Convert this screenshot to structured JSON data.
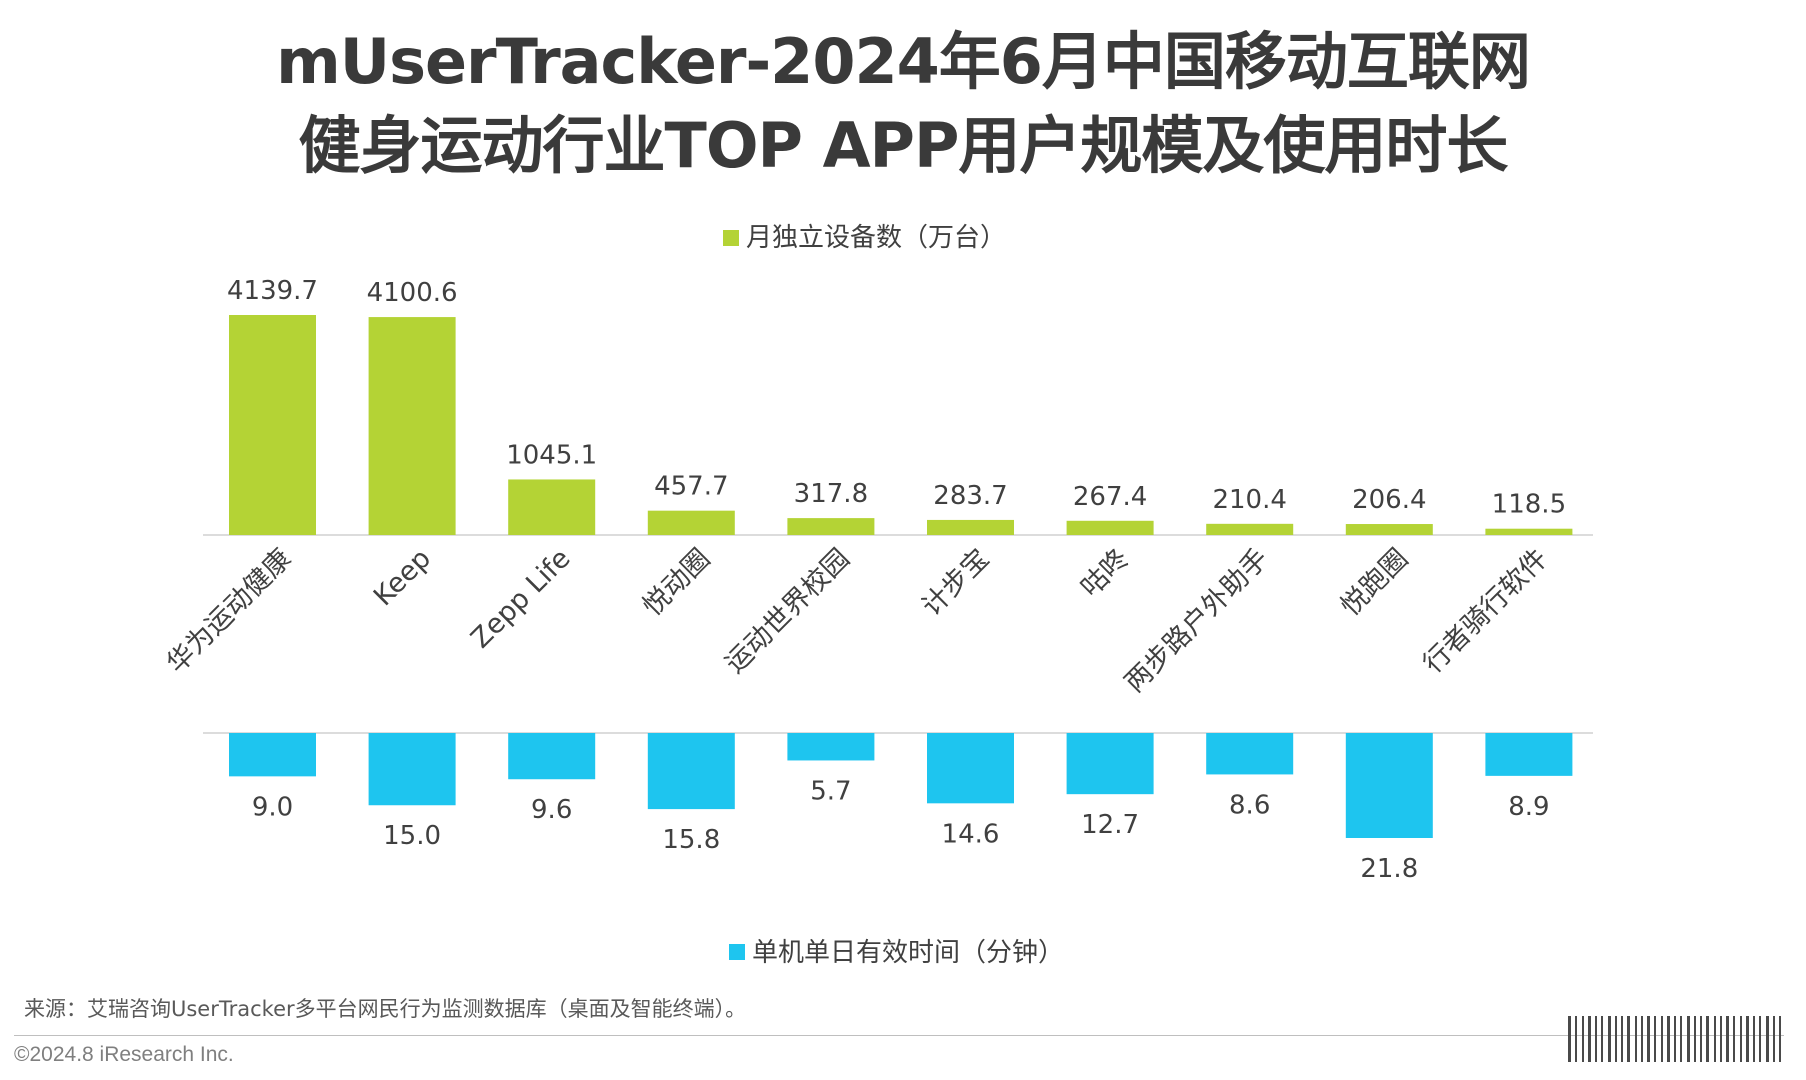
{
  "title_lines": [
    "mUserTracker-2024年6月中国移动互联网",
    "健身运动行业TOP APP用户规模及使用时长"
  ],
  "chart_data": {
    "type": "bar",
    "categories": [
      "华为运动健康",
      "Keep",
      "Zepp Life",
      "悦动圈",
      "运动世界校园",
      "计步宝",
      "咕咚",
      "两步路户外助手",
      "悦跑圈",
      "行者骑行软件"
    ],
    "series": [
      {
        "name": "月独立设备数（万台）",
        "color": "#b4d335",
        "values": [
          4139.7,
          4100.6,
          1045.1,
          457.7,
          317.8,
          283.7,
          267.4,
          210.4,
          206.4,
          118.5
        ]
      },
      {
        "name": "单机单日有效时间（分钟）",
        "color": "#1ec5ef",
        "values": [
          9.0,
          15.0,
          9.6,
          15.8,
          5.7,
          14.6,
          12.7,
          8.6,
          21.8,
          8.9
        ],
        "value_labels": [
          "9.0",
          "15.0",
          "9.6",
          "15.8",
          "5.7",
          "14.6",
          "12.7",
          "8.6",
          "21.8",
          "8.9"
        ]
      }
    ],
    "legend_position": "top-center (devices) / bottom-center (time)",
    "grid": false
  },
  "source_note": "来源：艾瑞咨询UserTracker多平台网民行为监测数据库（桌面及智能终端）。",
  "copyright": "©2024.8 iResearch Inc."
}
